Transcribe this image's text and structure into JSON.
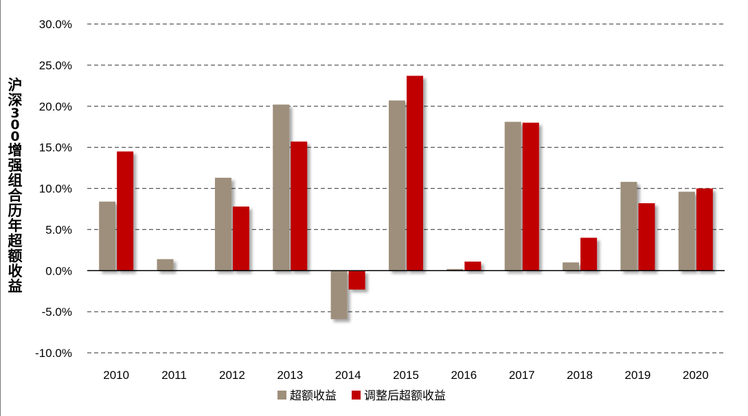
{
  "chart_data": {
    "type": "bar",
    "ylabel": "沪深300增强组合历年超额收益",
    "ylim": [
      -10,
      30
    ],
    "ytick_step": 5,
    "ytick_labels": [
      "30.0%",
      "25.0%",
      "20.0%",
      "15.0%",
      "10.0%",
      "5.0%",
      "0.0%",
      "-5.0%",
      "-10.0%"
    ],
    "grid": true,
    "legend_position": "bottom-center",
    "categories": [
      "2010",
      "2011",
      "2012",
      "2013",
      "2014",
      "2015",
      "2016",
      "2017",
      "2018",
      "2019",
      "2020"
    ],
    "series": [
      {
        "name": "超额收益",
        "color": "#9e8f7b",
        "values": [
          8.4,
          1.4,
          11.3,
          20.2,
          -5.9,
          20.7,
          0.2,
          18.1,
          1.0,
          10.8,
          9.6
        ]
      },
      {
        "name": "调整后超额收益",
        "color": "#c00000",
        "values": [
          14.5,
          0.0,
          7.8,
          15.7,
          -2.3,
          23.7,
          1.1,
          18.0,
          4.0,
          8.2,
          10.0
        ]
      }
    ]
  }
}
